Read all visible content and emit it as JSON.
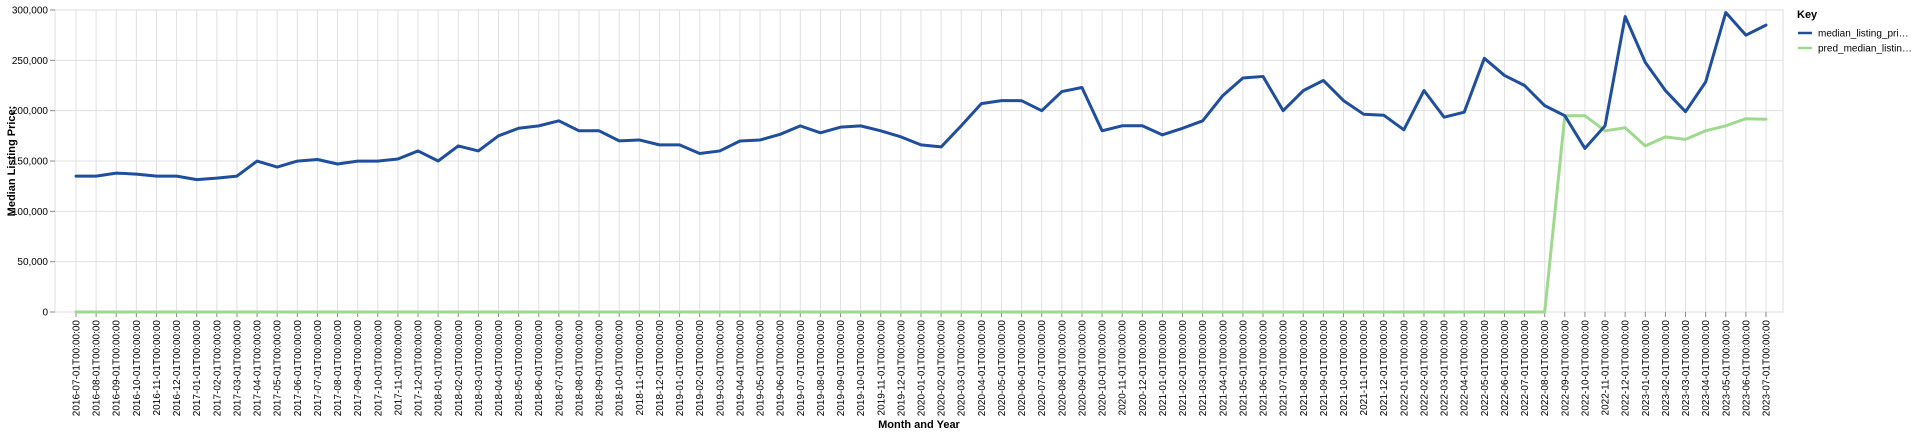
{
  "chart_data": {
    "type": "line",
    "xlabel": "Month and Year",
    "ylabel": "Median Listing Price:",
    "ylim": [
      0,
      300000
    ],
    "yticks": [
      "0",
      "50,000",
      "100,000",
      "150,000",
      "200,000",
      "250,000",
      "300,000"
    ],
    "grid": true,
    "legend": {
      "title": "Key",
      "placement": "top-right"
    },
    "categories": [
      "2016-07-01T00:00:00",
      "2016-08-01T00:00:00",
      "2016-09-01T00:00:00",
      "2016-10-01T00:00:00",
      "2016-11-01T00:00:00",
      "2016-12-01T00:00:00",
      "2017-01-01T00:00:00",
      "2017-02-01T00:00:00",
      "2017-03-01T00:00:00",
      "2017-04-01T00:00:00",
      "2017-05-01T00:00:00",
      "2017-06-01T00:00:00",
      "2017-07-01T00:00:00",
      "2017-08-01T00:00:00",
      "2017-09-01T00:00:00",
      "2017-10-01T00:00:00",
      "2017-11-01T00:00:00",
      "2017-12-01T00:00:00",
      "2018-01-01T00:00:00",
      "2018-02-01T00:00:00",
      "2018-03-01T00:00:00",
      "2018-04-01T00:00:00",
      "2018-05-01T00:00:00",
      "2018-06-01T00:00:00",
      "2018-07-01T00:00:00",
      "2018-08-01T00:00:00",
      "2018-09-01T00:00:00",
      "2018-10-01T00:00:00",
      "2018-11-01T00:00:00",
      "2018-12-01T00:00:00",
      "2019-01-01T00:00:00",
      "2019-02-01T00:00:00",
      "2019-03-01T00:00:00",
      "2019-04-01T00:00:00",
      "2019-05-01T00:00:00",
      "2019-06-01T00:00:00",
      "2019-07-01T00:00:00",
      "2019-08-01T00:00:00",
      "2019-09-01T00:00:00",
      "2019-10-01T00:00:00",
      "2019-11-01T00:00:00",
      "2019-12-01T00:00:00",
      "2020-01-01T00:00:00",
      "2020-02-01T00:00:00",
      "2020-03-01T00:00:00",
      "2020-04-01T00:00:00",
      "2020-05-01T00:00:00",
      "2020-06-01T00:00:00",
      "2020-07-01T00:00:00",
      "2020-08-01T00:00:00",
      "2020-09-01T00:00:00",
      "2020-10-01T00:00:00",
      "2020-11-01T00:00:00",
      "2020-12-01T00:00:00",
      "2021-01-01T00:00:00",
      "2021-02-01T00:00:00",
      "2021-03-01T00:00:00",
      "2021-04-01T00:00:00",
      "2021-05-01T00:00:00",
      "2021-06-01T00:00:00",
      "2021-07-01T00:00:00",
      "2021-08-01T00:00:00",
      "2021-09-01T00:00:00",
      "2021-10-01T00:00:00",
      "2021-11-01T00:00:00",
      "2021-12-01T00:00:00",
      "2022-01-01T00:00:00",
      "2022-02-01T00:00:00",
      "2022-03-01T00:00:00",
      "2022-04-01T00:00:00",
      "2022-05-01T00:00:00",
      "2022-06-01T00:00:00",
      "2022-07-01T00:00:00",
      "2022-08-01T00:00:00",
      "2022-09-01T00:00:00",
      "2022-10-01T00:00:00",
      "2022-11-01T00:00:00",
      "2022-12-01T00:00:00",
      "2023-01-01T00:00:00",
      "2023-02-01T00:00:00",
      "2023-03-01T00:00:00",
      "2023-04-01T00:00:00",
      "2023-05-01T00:00:00",
      "2023-06-01T00:00:00",
      "2023-07-01T00:00:00"
    ],
    "series": [
      {
        "name": "median_listing_pri…",
        "color": "#1f4e9c",
        "values": [
          135000,
          135000,
          138000,
          137000,
          135000,
          135000,
          131500,
          133000,
          135000,
          149900,
          144000,
          149900,
          151500,
          147000,
          149900,
          149900,
          152000,
          160000,
          150000,
          165000,
          160000,
          175000,
          182500,
          184900,
          189900,
          180000,
          180000,
          170000,
          170900,
          166000,
          166000,
          157500,
          160000,
          169900,
          170900,
          176500,
          184900,
          178000,
          183600,
          184900,
          180000,
          174000,
          166000,
          164000,
          185000,
          207000,
          210000,
          209900,
          200000,
          219000,
          223000,
          180000,
          185000,
          185000,
          176000,
          182500,
          189900,
          215000,
          232500,
          234000,
          200000,
          219900,
          230000,
          210000,
          196500,
          195500,
          181000,
          220000,
          193500,
          198500,
          252000,
          235000,
          225000,
          205000,
          195000,
          162500,
          185000,
          293500,
          248000,
          220000,
          199000,
          228500,
          297500,
          275000,
          285000
        ]
      },
      {
        "name": "pred_median_listin…",
        "color": "#9fd98f",
        "values": [
          0,
          0,
          0,
          0,
          0,
          0,
          0,
          0,
          0,
          0,
          0,
          0,
          0,
          0,
          0,
          0,
          0,
          0,
          0,
          0,
          0,
          0,
          0,
          0,
          0,
          0,
          0,
          0,
          0,
          0,
          0,
          0,
          0,
          0,
          0,
          0,
          0,
          0,
          0,
          0,
          0,
          0,
          0,
          0,
          0,
          0,
          0,
          0,
          0,
          0,
          0,
          0,
          0,
          0,
          0,
          0,
          0,
          0,
          0,
          0,
          0,
          0,
          0,
          0,
          0,
          0,
          0,
          0,
          0,
          0,
          0,
          0,
          0,
          0,
          195000,
          195000,
          180000,
          183000,
          165000,
          174000,
          171500,
          180000,
          185000,
          192000,
          191500
        ]
      }
    ]
  }
}
